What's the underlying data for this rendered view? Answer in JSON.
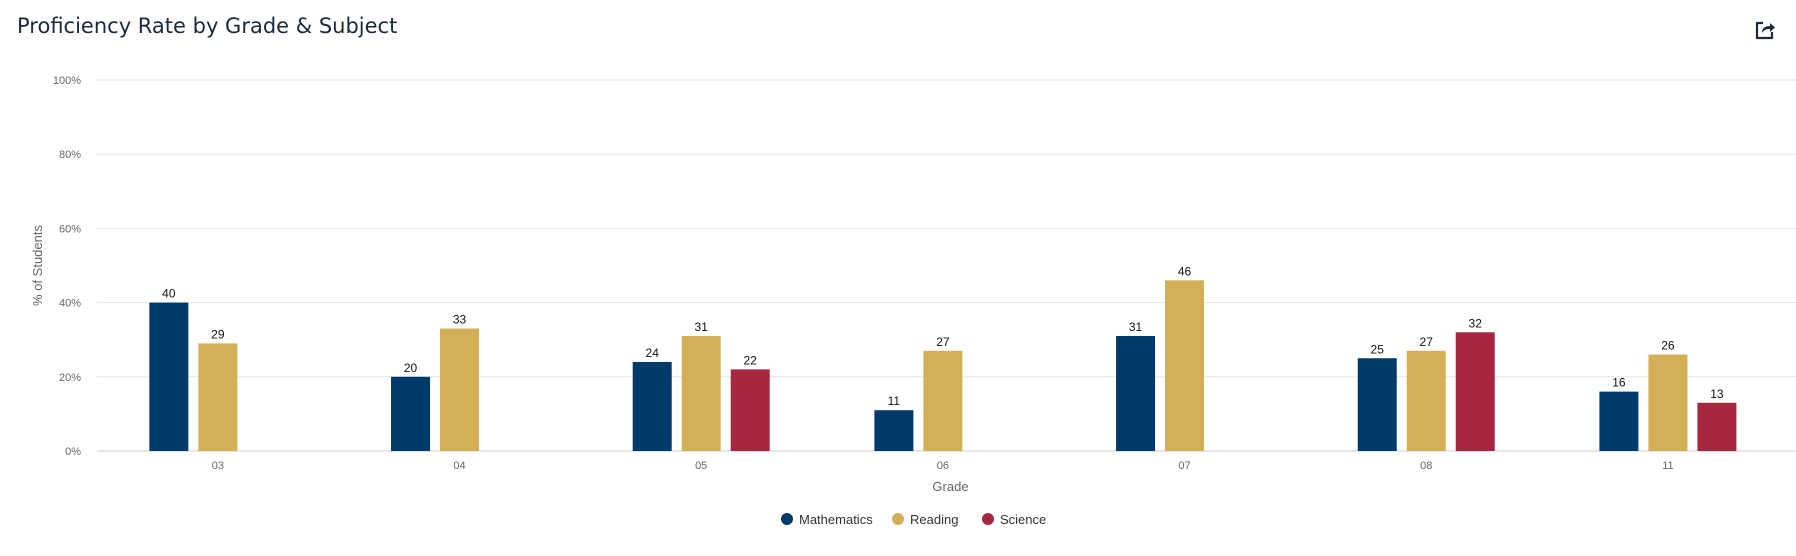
{
  "header": {
    "title": "Proficiency Rate by Grade & Subject",
    "share_icon": "share-icon"
  },
  "chart_data": {
    "type": "bar",
    "title": "Proficiency Rate by Grade & Subject",
    "xlabel": "Grade",
    "ylabel": "% of Students",
    "ylim": [
      0,
      100
    ],
    "y_ticks": [
      "0%",
      "20%",
      "40%",
      "60%",
      "80%",
      "100%"
    ],
    "y_tick_values": [
      0,
      20,
      40,
      60,
      80,
      100
    ],
    "categories": [
      "03",
      "04",
      "05",
      "06",
      "07",
      "08",
      "11"
    ],
    "series": [
      {
        "name": "Mathematics",
        "color": "#003a6b",
        "values": [
          40,
          20,
          24,
          11,
          31,
          25,
          16
        ]
      },
      {
        "name": "Reading",
        "color": "#d3b057",
        "values": [
          29,
          33,
          31,
          27,
          46,
          27,
          26
        ]
      },
      {
        "name": "Science",
        "color": "#a82740",
        "values": [
          null,
          null,
          22,
          null,
          null,
          32,
          13
        ]
      }
    ],
    "grid": true,
    "legend_position": "bottom-center"
  }
}
